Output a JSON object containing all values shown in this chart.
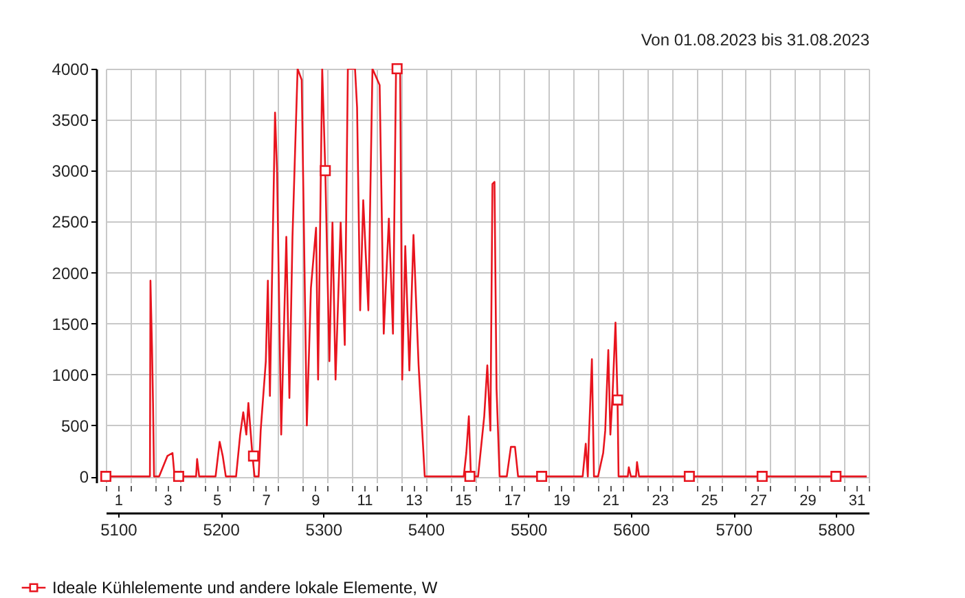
{
  "chart_data": {
    "type": "line",
    "title": "Von 01.08.2023 bis 31.08.2023",
    "xlim": [
      5088,
      5832
    ],
    "xticks": [
      5100,
      5200,
      5300,
      5400,
      5500,
      5600,
      5700,
      5800
    ],
    "x2lim": [
      0.5,
      31.5
    ],
    "x2ticks": [
      {
        "value": 0.5,
        "label": null
      },
      1,
      {
        "value": 1.5,
        "label": null
      },
      {
        "value": 2.5,
        "label": null
      },
      3,
      {
        "value": 3.5,
        "label": null
      },
      {
        "value": 4.5,
        "label": null
      },
      5,
      {
        "value": 5.5,
        "label": null
      },
      {
        "value": 6.5,
        "label": null
      },
      7,
      {
        "value": 7.5,
        "label": null
      },
      {
        "value": 8.5,
        "label": null
      },
      9,
      {
        "value": 9.5,
        "label": null
      },
      {
        "value": 10.5,
        "label": null
      },
      11,
      {
        "value": 11.5,
        "label": null
      },
      {
        "value": 12.5,
        "label": null
      },
      13,
      {
        "value": 13.5,
        "label": null
      },
      {
        "value": 14.5,
        "label": null
      },
      15,
      {
        "value": 15.5,
        "label": null
      },
      {
        "value": 16.5,
        "label": null
      },
      17,
      {
        "value": 17.5,
        "label": null
      },
      {
        "value": 18.5,
        "label": null
      },
      19,
      {
        "value": 19.5,
        "label": null
      },
      {
        "value": 20.5,
        "label": null
      },
      21,
      {
        "value": 21.5,
        "label": null
      },
      {
        "value": 22.5,
        "label": null
      },
      23,
      {
        "value": 23.5,
        "label": null
      },
      {
        "value": 24.5,
        "label": null
      },
      25,
      {
        "value": 25.5,
        "label": null
      },
      {
        "value": 26.5,
        "label": null
      },
      27,
      {
        "value": 27.5,
        "label": null
      },
      {
        "value": 28.5,
        "label": null
      },
      29,
      {
        "value": 29.5,
        "label": null
      },
      {
        "value": 30.5,
        "label": null
      },
      31,
      {
        "value": 31.5,
        "label": null
      }
    ],
    "ylim": [
      -60,
      4000
    ],
    "yticks": [
      0,
      500,
      1000,
      1500,
      2000,
      2500,
      3000,
      3500,
      4000
    ],
    "grid": true,
    "legend": "bottom left",
    "series": [
      {
        "name": "Ideale Kühlelemente und andere lokale Elemente, W",
        "color": "#e8141e",
        "x": [
          5088,
          5131,
          5131.5,
          5133,
          5134,
          5135,
          5140,
          5148,
          5153,
          5155,
          5176,
          5177,
          5179,
          5195,
          5199,
          5202,
          5205,
          5215,
          5219,
          5222,
          5225,
          5227,
          5231,
          5233,
          5237,
          5239,
          5244,
          5246,
          5248,
          5253,
          5255,
          5259,
          5264,
          5267,
          5270,
          5275,
          5279,
          5284,
          5288,
          5293,
          5295,
          5299,
          5302,
          5306,
          5309,
          5312,
          5317,
          5321,
          5324,
          5331,
          5333,
          5336,
          5339,
          5344,
          5348,
          5355,
          5359,
          5364,
          5368,
          5371,
          5375,
          5377,
          5380,
          5384,
          5388,
          5393,
          5396,
          5399,
          5437,
          5439.5,
          5442,
          5444,
          5451,
          5457,
          5460,
          5463,
          5465,
          5467,
          5469,
          5472,
          5479,
          5483,
          5487,
          5490,
          5553,
          5556,
          5558,
          5559,
          5562,
          5564,
          5568,
          5573,
          5575,
          5578,
          5580,
          5582,
          5585,
          5587,
          5588,
          5597,
          5598,
          5600,
          5605,
          5606,
          5608,
          5830
        ],
        "values": [
          0,
          0,
          1920,
          1270,
          720,
          0,
          0,
          200,
          230,
          0,
          0,
          170,
          0,
          0,
          340,
          200,
          0,
          0,
          410,
          630,
          410,
          720,
          200,
          0,
          0,
          450,
          1130,
          1920,
          790,
          3570,
          2980,
          410,
          2350,
          770,
          2350,
          4000,
          3890,
          500,
          1850,
          2440,
          950,
          4000,
          3000,
          1130,
          2490,
          950,
          2490,
          1290,
          4000,
          4000,
          3620,
          1630,
          2710,
          1630,
          4000,
          3840,
          1400,
          2530,
          1400,
          4000,
          4000,
          950,
          2260,
          1040,
          2370,
          1090,
          540,
          0,
          0,
          230,
          590,
          0,
          0,
          590,
          1090,
          450,
          2870,
          2890,
          860,
          0,
          0,
          290,
          290,
          0,
          0,
          320,
          0,
          360,
          1150,
          0,
          0,
          230,
          450,
          1240,
          410,
          770,
          1510,
          750,
          0,
          0,
          90,
          0,
          0,
          140,
          0,
          0
        ]
      },
      {
        "type": "scatter",
        "color": "#e8141e",
        "marker": "square",
        "x": [
          5088,
          5159,
          5232,
          5302,
          5372,
          5443,
          5513,
          5587,
          5657,
          5728,
          5800
        ],
        "values": [
          0,
          0,
          200,
          3000,
          4000,
          0,
          0,
          750,
          0,
          0,
          0
        ]
      }
    ]
  }
}
